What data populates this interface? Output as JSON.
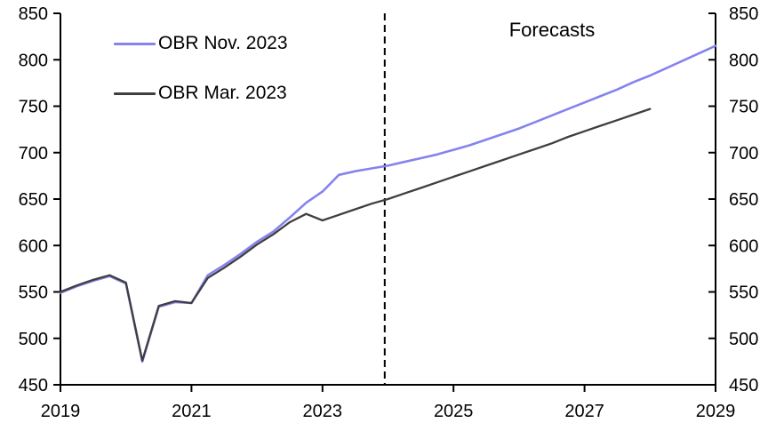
{
  "chart_data": {
    "type": "line",
    "title": "",
    "xlabel": "",
    "ylabel": "",
    "annotation": "Forecasts",
    "xlim": [
      2019,
      2029
    ],
    "ylim": [
      450,
      850
    ],
    "x_ticks": [
      2019,
      2021,
      2023,
      2025,
      2027,
      2029
    ],
    "y_ticks": [
      450,
      500,
      550,
      600,
      650,
      700,
      750,
      800,
      850
    ],
    "y_axis_mirrored_right": true,
    "grid": false,
    "legend_position": "top-left-inside",
    "forecast_divider_x": 2023.95,
    "series": [
      {
        "name": "OBR Nov. 2023",
        "color": "#8583EE",
        "x": [
          2019,
          2019.25,
          2019.5,
          2019.75,
          2020,
          2020.25,
          2020.5,
          2020.75,
          2021,
          2021.25,
          2021.5,
          2021.75,
          2022,
          2022.25,
          2022.5,
          2022.75,
          2023,
          2023.25,
          2023.5,
          2023.75,
          2024,
          2024.25,
          2024.5,
          2024.75,
          2025,
          2025.25,
          2025.5,
          2025.75,
          2026,
          2026.25,
          2026.5,
          2026.75,
          2027,
          2027.25,
          2027.5,
          2027.75,
          2028,
          2028.25,
          2028.5,
          2028.75,
          2029
        ],
        "y": [
          549,
          556,
          562,
          567,
          559,
          475,
          534,
          539,
          538,
          568,
          579,
          591,
          604,
          615,
          630,
          646,
          658,
          676,
          680,
          683,
          686,
          690,
          694,
          698,
          703,
          708,
          714,
          720,
          726,
          733,
          740,
          747,
          754,
          761,
          768,
          776,
          783,
          791,
          799,
          807,
          815
        ]
      },
      {
        "name": "OBR Mar. 2023",
        "color": "#3F3F3F",
        "x": [
          2019,
          2019.25,
          2019.5,
          2019.75,
          2020,
          2020.25,
          2020.5,
          2020.75,
          2021,
          2021.25,
          2021.5,
          2021.75,
          2022,
          2022.25,
          2022.5,
          2022.75,
          2023,
          2023.25,
          2023.5,
          2023.75,
          2024,
          2024.25,
          2024.5,
          2024.75,
          2025,
          2025.25,
          2025.5,
          2025.75,
          2026,
          2026.25,
          2026.5,
          2026.75,
          2027,
          2027.25,
          2027.5,
          2027.75,
          2028
        ],
        "y": [
          550,
          557,
          563,
          568,
          560,
          476,
          535,
          540,
          538,
          565,
          576,
          588,
          601,
          612,
          625,
          634,
          627,
          633,
          639,
          645,
          650,
          656,
          662,
          668,
          674,
          680,
          686,
          692,
          698,
          704,
          710,
          717,
          723,
          729,
          735,
          741,
          747
        ]
      }
    ]
  },
  "style": {
    "axis_color": "#000000",
    "background": "#FFFFFF",
    "divider_color": "#000000"
  }
}
